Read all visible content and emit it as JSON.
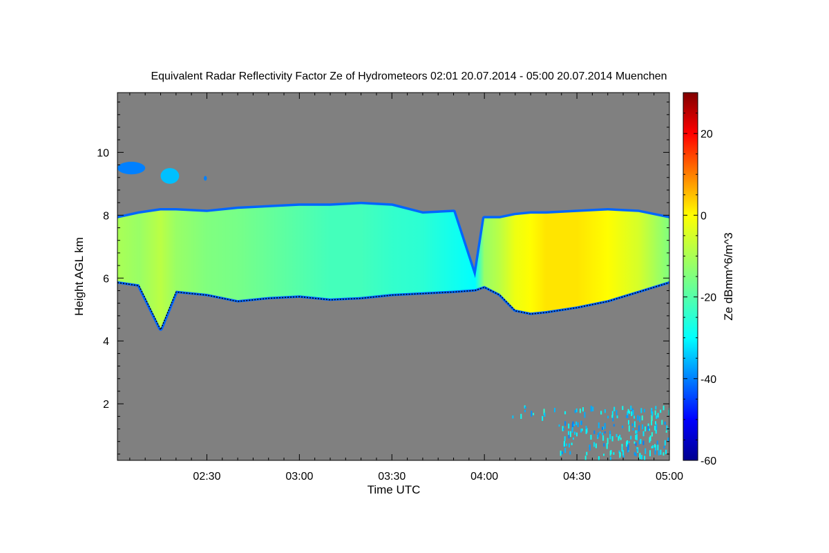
{
  "chart_data": {
    "type": "heatmap",
    "title": "Equivalent Radar Reflectivity Factor Ze of Hydrometeors   02:01 20.07.2014 - 05:00 20.07.2014 Muenchen",
    "xlabel": "Time UTC",
    "ylabel": "Height AGL km",
    "colorbar_label": "Ze dBmm^6/m^3",
    "x_range_minutes_utc": [
      121,
      300
    ],
    "x_ticks": [
      {
        "minutes": 150,
        "label": "02:30"
      },
      {
        "minutes": 180,
        "label": "03:00"
      },
      {
        "minutes": 210,
        "label": "03:30"
      },
      {
        "minutes": 240,
        "label": "04:00"
      },
      {
        "minutes": 270,
        "label": "04:30"
      },
      {
        "minutes": 300,
        "label": "05:00"
      }
    ],
    "y_range_km": [
      0.2,
      11.9
    ],
    "y_ticks": [
      {
        "value": 2,
        "label": "2"
      },
      {
        "value": 4,
        "label": "4"
      },
      {
        "value": 6,
        "label": "6"
      },
      {
        "value": 8,
        "label": "8"
      },
      {
        "value": 10,
        "label": "10"
      }
    ],
    "colorbar_range": [
      -60,
      30
    ],
    "colorbar_ticks": [
      {
        "value": -60,
        "label": "-60"
      },
      {
        "value": -40,
        "label": "-40"
      },
      {
        "value": -20,
        "label": "-20"
      },
      {
        "value": 0,
        "label": "0"
      },
      {
        "value": 20,
        "label": "20"
      }
    ],
    "background_color": "#808080",
    "colormap": [
      "#00008f",
      "#0000ff",
      "#00ffff",
      "#ffff00",
      "#ff0000",
      "#800000"
    ],
    "cloud_layer": {
      "time_minutes": [
        121,
        128,
        135,
        140,
        150,
        160,
        170,
        180,
        190,
        200,
        210,
        220,
        230,
        237,
        240,
        245,
        250,
        255,
        260,
        270,
        280,
        290,
        300
      ],
      "top_km": [
        7.9,
        8.05,
        8.15,
        8.15,
        8.1,
        8.2,
        8.25,
        8.3,
        8.3,
        8.35,
        8.3,
        8.05,
        8.1,
        6.0,
        7.9,
        7.9,
        8.0,
        8.05,
        8.05,
        8.1,
        8.15,
        8.1,
        7.9
      ],
      "base_km": [
        5.9,
        5.8,
        4.4,
        5.6,
        5.5,
        5.3,
        5.4,
        5.45,
        5.35,
        5.4,
        5.5,
        5.55,
        5.6,
        5.65,
        5.75,
        5.5,
        5.0,
        4.9,
        4.95,
        5.1,
        5.3,
        5.6,
        5.9
      ],
      "peak_dbz": [
        -10,
        -12,
        -8,
        -12,
        -15,
        -16,
        -18,
        -20,
        -22,
        -22,
        -24,
        -25,
        -28,
        -30,
        -12,
        -8,
        -2,
        0,
        2,
        2,
        0,
        -5,
        -15
      ]
    },
    "cirrus_patches": [
      {
        "t0": 121,
        "t1": 130,
        "h0": 9.3,
        "h1": 9.7,
        "dbz": -40
      },
      {
        "t0": 135,
        "t1": 141,
        "h0": 9.0,
        "h1": 9.5,
        "dbz": -35
      },
      {
        "t0": 149,
        "t1": 150,
        "h0": 9.1,
        "h1": 9.25,
        "dbz": -40
      }
    ],
    "low_level_echoes": [
      {
        "t0": 249,
        "t1": 300,
        "h0": 1.6,
        "h1": 1.95,
        "dbz": -30
      },
      {
        "t0": 264,
        "t1": 300,
        "h0": 0.3,
        "h1": 1.5,
        "dbz": -32
      }
    ]
  }
}
